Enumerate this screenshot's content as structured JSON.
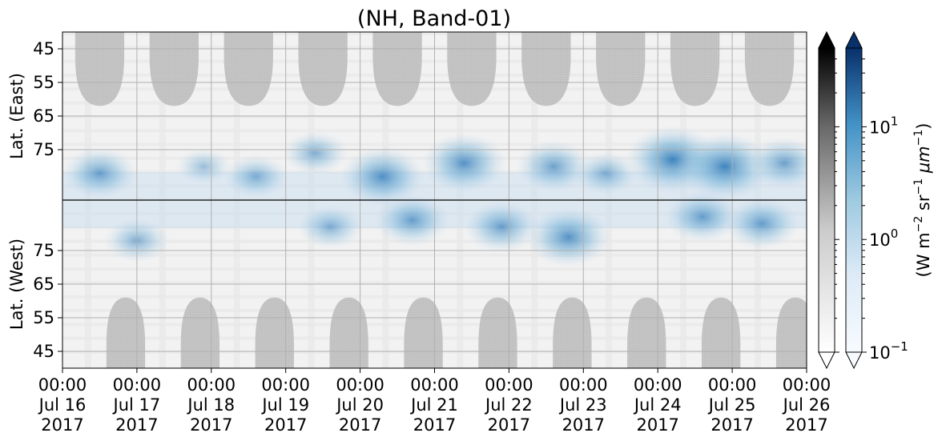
{
  "chart_data": {
    "type": "heatmap",
    "title": "(NH, Band-01)",
    "x_axis": {
      "start": "2017-07-16T00:00",
      "end": "2017-07-26T00:00",
      "ticks": [
        {
          "time": "00:00",
          "day": "Jul 16",
          "year": "2017"
        },
        {
          "time": "00:00",
          "day": "Jul 17",
          "year": "2017"
        },
        {
          "time": "00:00",
          "day": "Jul 18",
          "year": "2017"
        },
        {
          "time": "00:00",
          "day": "Jul 19",
          "year": "2017"
        },
        {
          "time": "00:00",
          "day": "Jul 20",
          "year": "2017"
        },
        {
          "time": "00:00",
          "day": "Jul 21",
          "year": "2017"
        },
        {
          "time": "00:00",
          "day": "Jul 22",
          "year": "2017"
        },
        {
          "time": "00:00",
          "day": "Jul 23",
          "year": "2017"
        },
        {
          "time": "00:00",
          "day": "Jul 24",
          "year": "2017"
        },
        {
          "time": "00:00",
          "day": "Jul 25",
          "year": "2017"
        },
        {
          "time": "00:00",
          "day": "Jul 26",
          "year": "2017"
        }
      ],
      "grid": true
    },
    "y_axis_east": {
      "label": "Lat. (East)",
      "ticks": [
        "45",
        "55",
        "65",
        "75"
      ],
      "range": [
        40,
        90
      ]
    },
    "y_axis_west": {
      "label": "Lat. (West)",
      "ticks": [
        "75",
        "65",
        "55",
        "45"
      ],
      "range": [
        90,
        40
      ]
    },
    "pole_line_latitude": 90,
    "colorbars": [
      {
        "name": "gray",
        "low": "#ffffff",
        "high": "#000000",
        "extend": "both"
      },
      {
        "name": "blue",
        "low": "#f7fbff",
        "high": "#08306b",
        "extend": "both",
        "scale": "log",
        "range": [
          0.1,
          50
        ],
        "ticks": [
          {
            "base": "10",
            "exp": "−1"
          },
          {
            "base": "10",
            "exp": "0"
          },
          {
            "base": "10",
            "exp": "1"
          }
        ],
        "label": {
          "prefix": "(W m",
          "exp1": "−2",
          "mid": " sr",
          "exp2": "−1",
          "mu": " μm",
          "exp3": "−1",
          "suffix": ")"
        }
      }
    ],
    "colors": {
      "gray_cap": "#c4c4c4",
      "blue_max": "#08306b",
      "blue_mid": "#4292c6",
      "blue_low": "#c6dbef"
    },
    "sunlit_cap_peaks": {
      "east_days": [
        0.5,
        1.5,
        2.5,
        3.5,
        4.5,
        5.5,
        6.5,
        7.5,
        8.5,
        9.5
      ],
      "east_lowest_lat": 62,
      "west_days": [
        0.85,
        1.85,
        2.85,
        3.85,
        4.85,
        5.85,
        6.85,
        7.85,
        8.85,
        9.85
      ],
      "west_lowest_lat": 61
    },
    "aurora_blobs": [
      {
        "day": 0.5,
        "lat": 82,
        "side": "east",
        "intensity": 3
      },
      {
        "day": 1.0,
        "lat": 78,
        "side": "west",
        "intensity": 2
      },
      {
        "day": 1.9,
        "lat": 80,
        "side": "east",
        "intensity": 1
      },
      {
        "day": 2.6,
        "lat": 83,
        "side": "east",
        "intensity": 2
      },
      {
        "day": 3.4,
        "lat": 76,
        "side": "east",
        "intensity": 2
      },
      {
        "day": 3.6,
        "lat": 82,
        "side": "west",
        "intensity": 2
      },
      {
        "day": 4.3,
        "lat": 83,
        "side": "east",
        "intensity": 4
      },
      {
        "day": 4.7,
        "lat": 84,
        "side": "west",
        "intensity": 3
      },
      {
        "day": 5.4,
        "lat": 79,
        "side": "east",
        "intensity": 4
      },
      {
        "day": 5.9,
        "lat": 82,
        "side": "west",
        "intensity": 3
      },
      {
        "day": 6.6,
        "lat": 80,
        "side": "east",
        "intensity": 3
      },
      {
        "day": 6.8,
        "lat": 79,
        "side": "west",
        "intensity": 4
      },
      {
        "day": 7.3,
        "lat": 82,
        "side": "east",
        "intensity": 2
      },
      {
        "day": 8.2,
        "lat": 78,
        "side": "east",
        "intensity": 5
      },
      {
        "day": 8.6,
        "lat": 85,
        "side": "west",
        "intensity": 3
      },
      {
        "day": 8.9,
        "lat": 80,
        "side": "east",
        "intensity": 5
      },
      {
        "day": 9.4,
        "lat": 83,
        "side": "west",
        "intensity": 3
      },
      {
        "day": 9.7,
        "lat": 79,
        "side": "east",
        "intensity": 3
      }
    ]
  }
}
